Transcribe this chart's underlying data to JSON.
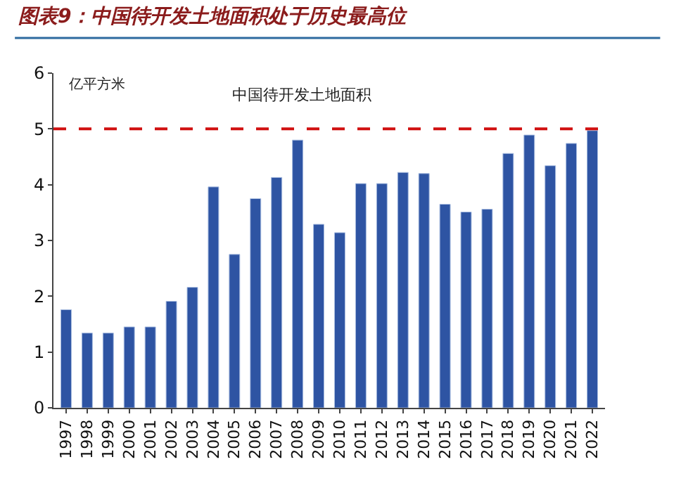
{
  "chart_data": {
    "type": "bar",
    "title": "图表9：中国待开发土地面积处于历史最高位",
    "subtitle": "中国待开发土地面积",
    "ylabel": "亿平方米",
    "categories": [
      "1997",
      "1998",
      "1999",
      "2000",
      "2001",
      "2002",
      "2003",
      "2004",
      "2005",
      "2006",
      "2007",
      "2008",
      "2009",
      "2010",
      "2011",
      "2012",
      "2013",
      "2014",
      "2015",
      "2016",
      "2017",
      "2018",
      "2019",
      "2020",
      "2021",
      "2022"
    ],
    "values": [
      1.76,
      1.34,
      1.34,
      1.45,
      1.45,
      1.91,
      2.16,
      3.96,
      2.75,
      3.75,
      4.13,
      4.8,
      3.29,
      3.14,
      4.02,
      4.02,
      4.22,
      4.2,
      3.65,
      3.51,
      3.56,
      4.56,
      4.89,
      4.34,
      4.74,
      4.97
    ],
    "color": "#2e54a3",
    "ylim": [
      0,
      6
    ],
    "yticks": [
      0,
      1,
      2,
      3,
      4,
      5,
      6
    ],
    "ref_lines": [
      {
        "axis": "y",
        "value": 5,
        "color": "#d01010",
        "line_style": "dashed"
      }
    ]
  }
}
